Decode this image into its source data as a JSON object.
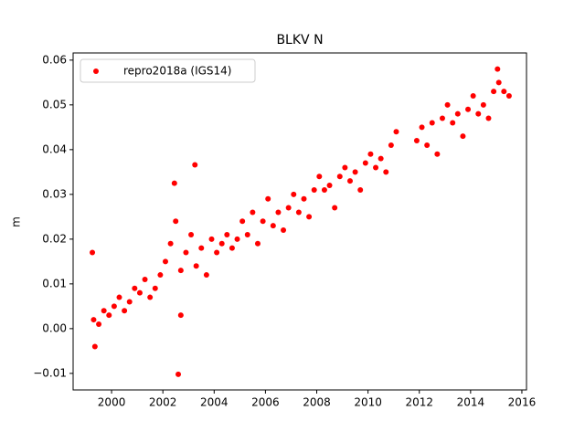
{
  "chart_data": {
    "type": "scatter",
    "title": "BLKV N",
    "ylabel": "m",
    "series": [
      {
        "name": "repro2018a (IGS14)",
        "color": "#ff0000",
        "x": [
          1999.3,
          1999.5,
          1999.7,
          1999.9,
          2000.1,
          2000.3,
          2000.5,
          2000.7,
          2000.9,
          2001.1,
          2001.3,
          2001.5,
          2001.7,
          2001.9,
          2002.1,
          2002.3,
          2002.5,
          2002.7,
          2002.9,
          2003.1,
          2003.3,
          2003.5,
          2003.7,
          2003.9,
          2004.1,
          2004.3,
          2004.5,
          2004.7,
          2004.9,
          2005.1,
          2005.3,
          2005.5,
          2005.7,
          2005.9,
          2006.1,
          2006.3,
          2006.5,
          2006.7,
          2006.9,
          2007.1,
          2007.3,
          2007.5,
          2007.7,
          2007.9,
          2008.1,
          2008.3,
          2008.5,
          2008.7,
          2008.9,
          2009.1,
          2009.3,
          2009.5,
          2009.7,
          2009.9,
          2010.1,
          2010.3,
          2010.5,
          2010.7,
          2010.9,
          2011.1,
          2011.9,
          2012.1,
          2012.3,
          2012.5,
          2012.7,
          2012.9,
          2013.1,
          2013.3,
          2013.5,
          2013.7,
          2013.9,
          2014.1,
          2014.3,
          2014.5,
          2014.7,
          2014.9,
          2015.1,
          2015.3,
          2015.5,
          2002.6,
          2003.25,
          2002.45,
          1999.25,
          2015.05,
          1999.35,
          2002.7
        ],
        "values": [
          0.002,
          0.001,
          0.004,
          0.003,
          0.005,
          0.007,
          0.004,
          0.006,
          0.009,
          0.008,
          0.011,
          0.007,
          0.009,
          0.012,
          0.015,
          0.019,
          0.024,
          0.013,
          0.017,
          0.021,
          0.014,
          0.018,
          0.012,
          0.02,
          0.017,
          0.019,
          0.021,
          0.018,
          0.02,
          0.024,
          0.021,
          0.026,
          0.019,
          0.024,
          0.029,
          0.023,
          0.026,
          0.022,
          0.027,
          0.03,
          0.026,
          0.029,
          0.025,
          0.031,
          0.034,
          0.031,
          0.032,
          0.027,
          0.034,
          0.036,
          0.033,
          0.035,
          0.031,
          0.037,
          0.039,
          0.036,
          0.038,
          0.035,
          0.041,
          0.044,
          0.042,
          0.045,
          0.041,
          0.046,
          0.039,
          0.047,
          0.05,
          0.046,
          0.048,
          0.043,
          0.049,
          0.052,
          0.048,
          0.05,
          0.047,
          0.053,
          0.055,
          0.053,
          0.052,
          -0.0102,
          0.0366,
          0.0325,
          0.017,
          0.058,
          -0.004,
          0.003
        ]
      }
    ],
    "xlim": [
      1998.5,
      2016.18
    ],
    "xticks": [
      2000,
      2002,
      2004,
      2006,
      2008,
      2010,
      2012,
      2014,
      2016
    ],
    "ylim": [
      -0.0137,
      0.0616
    ],
    "yticks": [
      {
        "value": -0.01,
        "label": "−0.01"
      },
      {
        "value": 0,
        "label": "0.00"
      },
      {
        "value": 0.01,
        "label": "0.01"
      },
      {
        "value": 0.02,
        "label": "0.02"
      },
      {
        "value": 0.03,
        "label": "0.03"
      },
      {
        "value": 0.04,
        "label": "0.04"
      },
      {
        "value": 0.05,
        "label": "0.05"
      },
      {
        "value": 0.06,
        "label": "0.06"
      }
    ],
    "legend": "upper left"
  }
}
